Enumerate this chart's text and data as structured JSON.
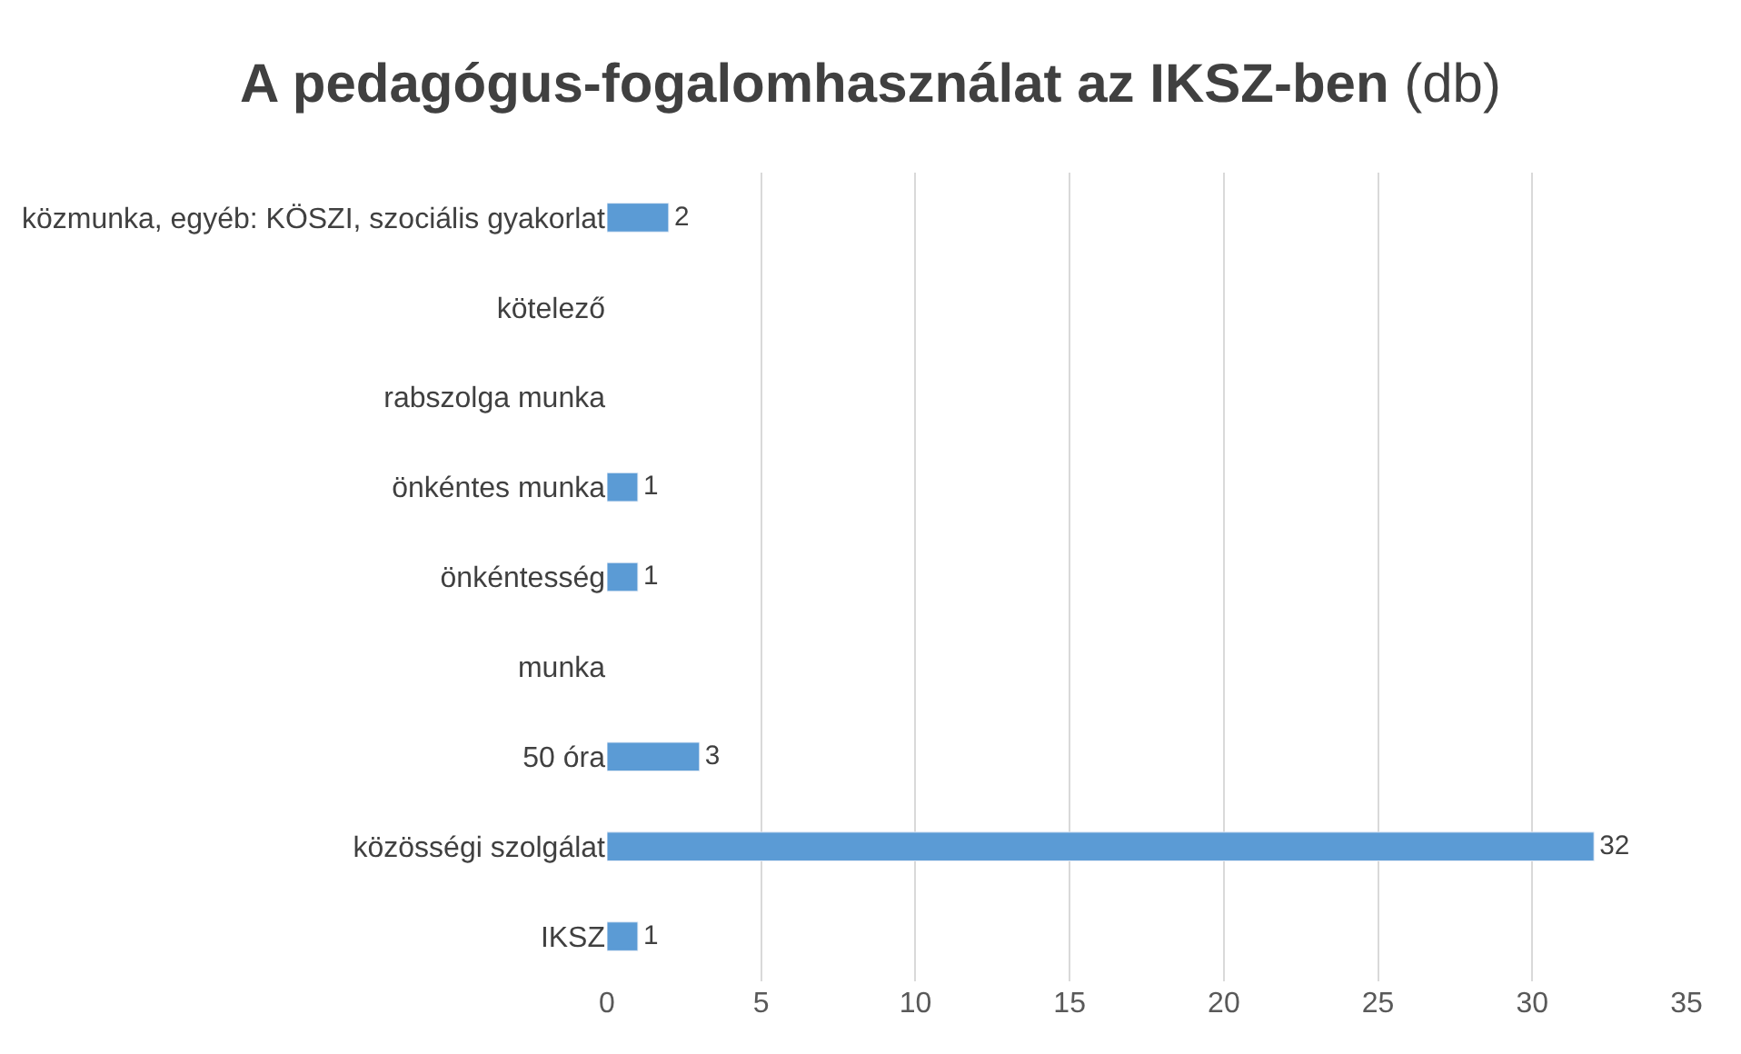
{
  "chart_data": {
    "type": "bar",
    "orientation": "horizontal",
    "title": "A pedagógus-fogalomhasználat az IKSZ-ben (db)",
    "categories": [
      "közmunka, egyéb: KÖSZI, szociális gyakorlat",
      "kötelező",
      "rabszolga munka",
      "önkéntes munka",
      "önkéntesség",
      "munka",
      "50 óra",
      "közösségi szolgálat",
      "IKSZ"
    ],
    "values": [
      2,
      null,
      null,
      1,
      1,
      null,
      3,
      32,
      1
    ],
    "color": "#5b9bd5",
    "xlim": [
      0,
      35
    ],
    "xticks": [
      0,
      5,
      10,
      15,
      20,
      25,
      30,
      35
    ],
    "grid": "x",
    "data_labels": true,
    "legend": false
  }
}
